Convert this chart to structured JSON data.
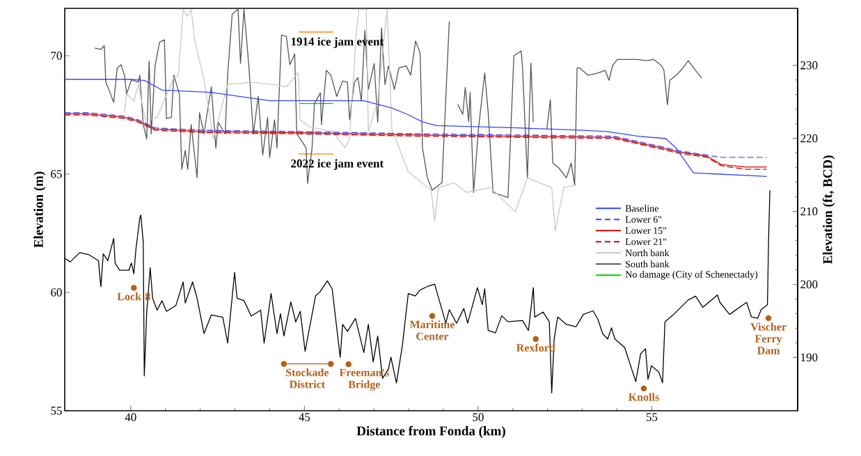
{
  "chart_data": {
    "type": "line",
    "xlabel": "Distance from Fonda (km)",
    "ylabel": "Elevation (m)",
    "y2label": "Elevation (ft, BCD)",
    "xlim": [
      38.1,
      59.2
    ],
    "ylim": [
      55,
      72
    ],
    "xticks": [
      40,
      45,
      50,
      55
    ],
    "yticks": [
      55,
      60,
      65,
      70
    ],
    "y2lim": [
      182.7,
      237.8
    ],
    "y2ticks": [
      190,
      200,
      210,
      220,
      230
    ],
    "legend": "right",
    "series": [
      {
        "name": "Baseline",
        "color": "#3344ff",
        "line_style": "solid",
        "x": [
          38.1,
          40.0,
          40.4,
          40.9,
          42.3,
          44.0,
          46.7,
          47.5,
          48.0,
          48.4,
          48.8,
          51.1,
          53.0,
          53.7,
          54.6,
          55.4,
          55.7,
          56.2,
          58.3
        ],
        "values": [
          69.0,
          69.0,
          68.95,
          68.55,
          68.45,
          68.1,
          68.1,
          67.8,
          67.5,
          67.2,
          67.05,
          66.95,
          66.85,
          66.8,
          66.6,
          66.5,
          66.1,
          65.05,
          64.9
        ]
      },
      {
        "name": "Lower 6\"",
        "color": "#3344ff",
        "line_style": "dashed",
        "x": [
          38.1,
          38.7,
          39.8,
          40.2,
          40.7,
          42.1,
          44.7,
          48.3,
          51.1,
          53.9,
          55.3,
          55.7,
          56.6,
          57.0,
          57.7,
          58.3
        ],
        "values": [
          67.6,
          67.6,
          67.45,
          67.3,
          66.95,
          66.85,
          66.8,
          66.7,
          66.65,
          66.6,
          66.15,
          66.0,
          65.8,
          65.7,
          65.7,
          65.7
        ]
      },
      {
        "name": "Lower 15\"",
        "color": "#d40000",
        "line_style": "solid",
        "x": [
          38.1,
          38.7,
          39.8,
          40.2,
          40.7,
          42.1,
          44.7,
          48.3,
          51.1,
          53.9,
          55.3,
          55.7,
          56.6,
          57.0,
          57.7,
          58.3
        ],
        "values": [
          67.55,
          67.55,
          67.4,
          67.25,
          66.9,
          66.8,
          66.75,
          66.65,
          66.6,
          66.55,
          66.1,
          65.95,
          65.75,
          65.4,
          65.3,
          65.3
        ]
      },
      {
        "name": "Lower 21\"",
        "color": "#d40000",
        "line_style": "dashed",
        "x": [
          38.1,
          38.7,
          39.8,
          40.2,
          40.7,
          42.1,
          44.7,
          48.3,
          51.1,
          53.9,
          55.3,
          55.7,
          56.6,
          57.0,
          57.7,
          58.3
        ],
        "values": [
          67.5,
          67.5,
          67.35,
          67.2,
          66.85,
          66.75,
          66.7,
          66.6,
          66.55,
          66.5,
          66.05,
          65.9,
          65.7,
          65.35,
          65.2,
          65.2
        ]
      },
      {
        "name": "North bank",
        "color": "#c8c8c8",
        "line_style": "solid",
        "x": [
          39.82,
          39.88,
          40.09,
          40.22,
          40.42,
          40.76,
          41.24,
          41.37,
          41.51,
          41.64,
          41.74,
          41.84,
          42.11,
          42.38,
          42.79,
          43.47,
          44.14,
          44.48,
          44.82,
          44.88,
          45.15,
          45.49,
          45.83,
          46.17,
          46.3,
          46.5,
          46.57,
          46.78,
          46.84,
          47.11,
          47.38,
          47.52,
          47.99,
          48.65,
          48.75,
          48.86,
          49.31,
          49.66,
          50.36,
          51.07,
          51.42,
          51.77,
          52.12,
          52.22,
          52.47,
          52.82
        ],
        "values": [
          67.59,
          68.38,
          68.08,
          68.78,
          67.29,
          67.39,
          69.08,
          69.18,
          71.96,
          71.66,
          71.96,
          70.67,
          68.98,
          66.49,
          68.78,
          68.88,
          68.78,
          68.68,
          69.28,
          67.29,
          66.99,
          66.89,
          66.79,
          66.1,
          66.49,
          71.07,
          71.96,
          71.96,
          66.79,
          68.08,
          71.96,
          66.89,
          65.1,
          64.31,
          63.0,
          64.43,
          64.63,
          64.22,
          64.43,
          63.4,
          64.84,
          64.63,
          64.43,
          62.6,
          64.43,
          64.53
        ]
      },
      {
        "name": "South bank",
        "color": "#555555",
        "line_style": "solid",
        "x": [
          38.97,
          39.14,
          39.24,
          39.28,
          39.34,
          39.51,
          39.61,
          39.72,
          39.82,
          39.88,
          40.02,
          40.22,
          40.26,
          40.36,
          40.46,
          40.53,
          40.59,
          40.7,
          40.83,
          40.97,
          41.03,
          41.17,
          41.24,
          41.4,
          41.47,
          41.57,
          41.64,
          41.74,
          41.91,
          41.98,
          42.11,
          42.18,
          42.32,
          42.45,
          42.52,
          42.72,
          42.79,
          42.92,
          43.09,
          43.16,
          43.26,
          43.4,
          43.53,
          43.67,
          43.8,
          43.94,
          44.0,
          44.14,
          44.21,
          44.34,
          44.48,
          44.58,
          44.72,
          44.78,
          44.88,
          45.05,
          45.09,
          45.22,
          45.29,
          45.46,
          45.49,
          45.63,
          45.76,
          45.93,
          46.1,
          46.24,
          46.3,
          46.44,
          46.54,
          46.64,
          46.74,
          46.84,
          47.01,
          47.11,
          47.22,
          47.32,
          47.42,
          47.59,
          47.72,
          47.93,
          48.06,
          48.2,
          48.33,
          48.4,
          48.54,
          48.68,
          48.96,
          49.03,
          49.17,
          49.28,
          49.31,
          49.42,
          49.56,
          49.63,
          49.73,
          49.77,
          49.87,
          50.01,
          50.19,
          50.29,
          50.43,
          50.86,
          50.93,
          51.03,
          51.24,
          51.28,
          51.42,
          51.52,
          51.59,
          51.7,
          51.91,
          51.98,
          52.08,
          52.15,
          52.33,
          52.54,
          52.68,
          52.78,
          52.85,
          52.93,
          53.17,
          53.45,
          53.66,
          53.77,
          53.87,
          54.01,
          54.57,
          54.85,
          55.06,
          55.28,
          55.35,
          55.45,
          55.52,
          55.7,
          55.84,
          56.05,
          56.26,
          56.43
        ],
        "values": [
          70.32,
          70.27,
          70.42,
          68.88,
          68.68,
          68.03,
          69.48,
          69.62,
          69.18,
          68.38,
          68.98,
          68.88,
          69.18,
          67.09,
          66.49,
          69.77,
          66.69,
          69.57,
          70.57,
          70.67,
          67.34,
          67.39,
          69.18,
          68.38,
          65.2,
          66.0,
          65.2,
          67.09,
          64.85,
          67.59,
          66.69,
          67.39,
          68.68,
          66.1,
          67.19,
          66.69,
          69.18,
          71.76,
          71.96,
          69.67,
          71.96,
          69.57,
          66.69,
          68.28,
          65.8,
          67.39,
          65.7,
          67.29,
          66.1,
          70.87,
          70.82,
          69.62,
          70.07,
          66.69,
          66.49,
          66.1,
          64.6,
          66.1,
          67.98,
          68.43,
          67.09,
          69.38,
          69.18,
          68.28,
          68.93,
          68.88,
          67.29,
          68.88,
          69.08,
          68.08,
          71.07,
          68.58,
          69.67,
          67.19,
          71.17,
          68.78,
          69.57,
          68.58,
          69.48,
          69.57,
          69.18,
          70.62,
          70.12,
          66.1,
          64.84,
          64.32,
          64.63,
          66.9,
          71.44,
          null,
          null,
          67.93,
          67.52,
          68.66,
          67.21,
          68.45,
          64.22,
          66.9,
          69.27,
          67.62,
          64.22,
          64.01,
          66.39,
          70.0,
          70.2,
          69.48,
          64.84,
          69.69,
          67.21,
          null,
          null,
          66.9,
          68.14,
          65.46,
          65.25,
          64.84,
          65.46,
          64.53,
          69.48,
          69.48,
          69.17,
          69.27,
          69.38,
          68.96,
          69.58,
          69.84,
          69.84,
          69.79,
          69.84,
          69.58,
          69.38,
          67.93,
          68.96,
          69.17,
          69.38,
          69.79,
          69.38,
          69.07
        ]
      },
      {
        "name": "No damage (City of Schenectady)",
        "color": "#00cc00",
        "line_style": "solid",
        "x": [
          44.85,
          45.82
        ],
        "values": [
          67.98,
          67.98
        ]
      },
      {
        "color": "#000000",
        "line_style": "solid",
        "x": [
          38.1,
          38.26,
          38.53,
          38.8,
          39.07,
          39.14,
          39.21,
          39.34,
          39.51,
          39.55,
          39.68,
          39.95,
          40.02,
          40.09,
          40.15,
          40.26,
          40.29,
          40.36,
          40.39,
          40.46,
          40.56,
          40.63,
          40.76,
          40.9,
          41.03,
          41.3,
          41.51,
          41.57,
          41.78,
          41.91,
          42.11,
          42.32,
          42.65,
          42.79,
          42.99,
          43.06,
          43.26,
          43.47,
          43.74,
          43.84,
          44.04,
          44.21,
          44.31,
          44.41,
          44.61,
          44.75,
          44.88,
          45.02,
          45.32,
          45.46,
          45.66,
          45.8,
          46.03,
          46.1,
          46.24,
          46.47,
          46.71,
          46.84,
          46.98,
          47.11,
          47.25,
          47.42,
          47.49,
          47.65,
          47.82,
          47.99,
          48.19,
          48.33,
          48.54,
          48.75,
          48.96,
          49.07,
          49.17,
          49.38,
          49.59,
          49.7,
          49.98,
          50.12,
          50.19,
          50.29,
          50.5,
          50.68,
          50.86,
          51.28,
          51.45,
          51.59,
          51.63,
          51.87,
          52.05,
          52.12,
          52.19,
          52.29,
          52.54,
          52.82,
          53.03,
          53.31,
          53.45,
          53.59,
          53.73,
          53.84,
          53.94,
          54.22,
          54.54,
          54.68,
          54.82,
          54.89,
          54.99,
          55.2,
          55.31,
          55.38,
          55.63,
          56.05,
          56.26,
          56.47,
          56.89,
          56.96,
          57.24,
          57.73,
          57.87,
          58.05,
          58.15,
          58.33,
          58.36,
          58.4
        ],
        "values": [
          61.44,
          61.29,
          61.68,
          61.59,
          61.34,
          60.24,
          61.63,
          61.34,
          62.28,
          61.24,
          60.94,
          60.94,
          61.24,
          60.79,
          61.83,
          63.13,
          63.27,
          62.13,
          56.47,
          59.15,
          61.04,
          59.75,
          59.25,
          59.65,
          59.2,
          59.45,
          60.44,
          59.55,
          60.44,
          59.75,
          58.26,
          59.05,
          58.95,
          57.86,
          60.84,
          59.75,
          59.65,
          59.0,
          59.25,
          57.86,
          59.95,
          58.26,
          59.1,
          58.16,
          59.6,
          58.75,
          59.2,
          57.51,
          59.85,
          60.04,
          60.49,
          60.14,
          57.26,
          58.65,
          58.35,
          58.9,
          57.46,
          58.65,
          57.06,
          58.16,
          56.37,
          56.76,
          57.26,
          56.17,
          57.76,
          59.95,
          59.85,
          60.1,
          60.25,
          60.35,
          59.27,
          58.7,
          59.27,
          58.7,
          59.32,
          58.7,
          60.2,
          59.48,
          60.15,
          58.39,
          58.29,
          59.01,
          58.76,
          58.81,
          58.39,
          60.2,
          58.96,
          59.17,
          58.76,
          55.76,
          58.03,
          58.96,
          58.65,
          58.55,
          59.07,
          59.22,
          58.86,
          58.24,
          58.03,
          58.5,
          58.03,
          57.67,
          56.23,
          57.41,
          57.62,
          56.33,
          56.9,
          56.64,
          56.18,
          58.76,
          59.07,
          59.68,
          59.84,
          59.37,
          59.89,
          59.58,
          59.07,
          59.58,
          58.96,
          58.91,
          59.27,
          59.48,
          62.06,
          64.3
        ]
      },
      {
        "color": "#b5601a",
        "line_style": "solid",
        "marker": "circle",
        "x": [
          44.41,
          45.76
        ],
        "values": [
          56.98,
          56.98
        ]
      },
      {
        "type": "scatter",
        "color": "#b5601a",
        "marker": "circle",
        "x": [
          40.09,
          46.27,
          48.68,
          51.66,
          54.77,
          58.36
        ],
        "values": [
          60.19,
          56.96,
          59.01,
          58.03,
          55.94,
          58.91
        ]
      },
      {
        "color": "#ff8000",
        "line_style": "solid",
        "x": [
          44.85,
          45.82
        ],
        "values": [
          71.0,
          71.0
        ]
      },
      {
        "color": "#ff8000",
        "line_style": "solid",
        "x": [
          44.85,
          45.82
        ],
        "values": [
          65.85,
          65.85
        ]
      }
    ],
    "annotations": [
      {
        "text": "Lock 8",
        "x": 40.09,
        "y": 60.19
      },
      {
        "text": "Stockade District",
        "x": 45.08,
        "y": 56.98
      },
      {
        "text": "Freeman's Bridge",
        "x": 46.27,
        "y": 56.96
      },
      {
        "text": "Maritime Center",
        "x": 48.68,
        "y": 59.01
      },
      {
        "text": "Rexford",
        "x": 51.66,
        "y": 58.03
      },
      {
        "text": "Knolls",
        "x": 54.77,
        "y": 55.94
      },
      {
        "text": "Vischer Ferry Dam",
        "x": 58.36,
        "y": 58.91
      },
      {
        "text": "1914 ice jam event",
        "x": 45.34,
        "y": 71.0
      },
      {
        "text": "2022 ice jam event",
        "x": 45.34,
        "y": 65.85
      }
    ]
  }
}
